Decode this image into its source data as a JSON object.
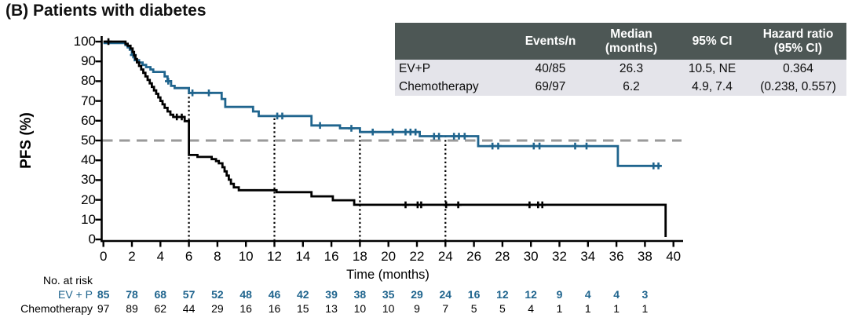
{
  "title": "(B) Patients with diabetes",
  "summary_table": {
    "headers": {
      "col0": {
        "line1": "",
        "line2": ""
      },
      "col1": {
        "line1": "Events/n",
        "line2": ""
      },
      "col2": {
        "line1": "Median",
        "line2": "(months)"
      },
      "col3": {
        "line1": "95% CI",
        "line2": ""
      },
      "col4": {
        "line1": "Hazard ratio",
        "line2": "(95% CI)"
      }
    },
    "rows": [
      {
        "name": "EV+P",
        "events_n": "40/85",
        "median_months": "26.3",
        "ci_95": "10.5, NE",
        "hazard_ratio": "0.364"
      },
      {
        "name": "Chemotherapy",
        "events_n": "69/97",
        "median_months": "6.2",
        "ci_95": "4.9, 7.4",
        "hazard_ratio": "(0.238, 0.557)"
      }
    ],
    "header_bg": "#4d5755",
    "body_bg": "#e4e4ea"
  },
  "chart_data": {
    "type": "line",
    "subtype": "kaplan_meier_step",
    "xlabel": "Time (months)",
    "ylabel": "PFS (%)",
    "xlim": [
      0,
      40
    ],
    "ylim": [
      0,
      100
    ],
    "x_ticks": [
      0,
      2,
      4,
      6,
      8,
      10,
      12,
      14,
      16,
      18,
      20,
      22,
      24,
      26,
      28,
      30,
      32,
      34,
      36,
      38,
      40
    ],
    "y_ticks": [
      0,
      10,
      20,
      30,
      40,
      50,
      60,
      70,
      80,
      90,
      100
    ],
    "grid": false,
    "reference_line_y": 50,
    "reference_line_color": "#9a9a9a",
    "landmark_lines": [
      [
        6,
        74.1
      ],
      [
        12,
        62.4
      ],
      [
        18,
        54.3
      ],
      [
        24,
        52.2
      ]
    ],
    "series": [
      {
        "name": "EV+P",
        "color": "#20658e",
        "steps": [
          [
            0,
            99.3
          ],
          [
            1.55,
            99.3
          ],
          [
            1.55,
            98.2
          ],
          [
            1.7,
            98.2
          ],
          [
            1.7,
            97.1
          ],
          [
            1.85,
            97.1
          ],
          [
            1.85,
            95.9
          ],
          [
            2.0,
            95.9
          ],
          [
            2.0,
            94.1
          ],
          [
            2.1,
            94.1
          ],
          [
            2.1,
            92.4
          ],
          [
            2.2,
            92.4
          ],
          [
            2.2,
            90.6
          ],
          [
            2.5,
            90.6
          ],
          [
            2.5,
            89.4
          ],
          [
            2.75,
            89.4
          ],
          [
            2.75,
            88.2
          ],
          [
            3.0,
            88.2
          ],
          [
            3.0,
            87.1
          ],
          [
            3.3,
            87.1
          ],
          [
            3.3,
            85.9
          ],
          [
            3.5,
            85.9
          ],
          [
            3.5,
            84.7
          ],
          [
            4.3,
            84.7
          ],
          [
            4.3,
            82.4
          ],
          [
            4.5,
            82.4
          ],
          [
            4.5,
            80.0
          ],
          [
            4.75,
            80.0
          ],
          [
            4.75,
            77.6
          ],
          [
            5.0,
            77.6
          ],
          [
            5.0,
            76.5
          ],
          [
            6.0,
            76.5
          ],
          [
            6.0,
            74.1
          ],
          [
            8.3,
            74.1
          ],
          [
            8.3,
            71.0
          ],
          [
            8.55,
            71.0
          ],
          [
            8.55,
            67.0
          ],
          [
            10.5,
            67.0
          ],
          [
            10.5,
            64.7
          ],
          [
            10.9,
            64.7
          ],
          [
            10.9,
            62.4
          ],
          [
            14.6,
            62.4
          ],
          [
            14.6,
            57.6
          ],
          [
            16.6,
            57.6
          ],
          [
            16.6,
            56.2
          ],
          [
            18.0,
            56.2
          ],
          [
            18.0,
            54.3
          ],
          [
            22.2,
            54.3
          ],
          [
            22.2,
            52.2
          ],
          [
            26.3,
            52.2
          ],
          [
            26.3,
            47.2
          ],
          [
            36.1,
            47.2
          ],
          [
            36.1,
            37.2
          ],
          [
            39.1,
            37.2
          ]
        ],
        "censors": [
          [
            2.1,
            93.2
          ],
          [
            4.55,
            80.0
          ],
          [
            6.25,
            74.1
          ],
          [
            7.4,
            74.1
          ],
          [
            12.2,
            62.4
          ],
          [
            12.55,
            62.4
          ],
          [
            15.2,
            57.6
          ],
          [
            17.4,
            56.2
          ],
          [
            18.9,
            54.3
          ],
          [
            20.3,
            54.3
          ],
          [
            21.2,
            54.3
          ],
          [
            21.55,
            54.3
          ],
          [
            21.9,
            54.3
          ],
          [
            23.2,
            52.2
          ],
          [
            23.55,
            52.2
          ],
          [
            24.6,
            52.2
          ],
          [
            24.95,
            52.2
          ],
          [
            25.35,
            52.2
          ],
          [
            27.3,
            47.2
          ],
          [
            27.7,
            47.2
          ],
          [
            30.2,
            47.2
          ],
          [
            30.6,
            47.2
          ],
          [
            33.1,
            47.2
          ],
          [
            33.9,
            47.2
          ],
          [
            38.6,
            37.2
          ],
          [
            38.95,
            37.2
          ]
        ]
      },
      {
        "name": "Chemotherapy",
        "color": "#000000",
        "steps": [
          [
            0,
            100
          ],
          [
            1.55,
            100
          ],
          [
            1.55,
            98.9
          ],
          [
            1.7,
            98.9
          ],
          [
            1.7,
            97.9
          ],
          [
            1.9,
            97.9
          ],
          [
            1.9,
            96.5
          ],
          [
            2.05,
            96.5
          ],
          [
            2.05,
            94.8
          ],
          [
            2.15,
            94.8
          ],
          [
            2.15,
            93.0
          ],
          [
            2.25,
            93.0
          ],
          [
            2.25,
            91.2
          ],
          [
            2.35,
            91.2
          ],
          [
            2.35,
            89.5
          ],
          [
            2.5,
            89.5
          ],
          [
            2.5,
            87.7
          ],
          [
            2.65,
            87.7
          ],
          [
            2.65,
            85.9
          ],
          [
            2.8,
            85.9
          ],
          [
            2.8,
            84.2
          ],
          [
            2.95,
            84.2
          ],
          [
            2.95,
            82.4
          ],
          [
            3.1,
            82.4
          ],
          [
            3.1,
            80.6
          ],
          [
            3.25,
            80.6
          ],
          [
            3.25,
            78.9
          ],
          [
            3.4,
            78.9
          ],
          [
            3.4,
            77.1
          ],
          [
            3.55,
            77.1
          ],
          [
            3.55,
            75.3
          ],
          [
            3.7,
            75.3
          ],
          [
            3.7,
            73.6
          ],
          [
            3.85,
            73.6
          ],
          [
            3.85,
            71.8
          ],
          [
            4.0,
            71.8
          ],
          [
            4.0,
            70.0
          ],
          [
            4.15,
            70.0
          ],
          [
            4.15,
            68.3
          ],
          [
            4.3,
            68.3
          ],
          [
            4.3,
            66.5
          ],
          [
            4.5,
            66.5
          ],
          [
            4.5,
            64.7
          ],
          [
            4.7,
            64.7
          ],
          [
            4.7,
            63.0
          ],
          [
            4.9,
            63.0
          ],
          [
            4.9,
            61.9
          ],
          [
            5.7,
            61.9
          ],
          [
            5.7,
            59.8
          ],
          [
            6.0,
            59.8
          ],
          [
            6.0,
            42.7
          ],
          [
            6.6,
            42.7
          ],
          [
            6.6,
            41.7
          ],
          [
            7.6,
            41.7
          ],
          [
            7.6,
            40.6
          ],
          [
            7.9,
            40.6
          ],
          [
            7.9,
            39.6
          ],
          [
            8.1,
            39.6
          ],
          [
            8.1,
            38.5
          ],
          [
            8.35,
            38.5
          ],
          [
            8.35,
            36.5
          ],
          [
            8.5,
            36.5
          ],
          [
            8.5,
            34.4
          ],
          [
            8.65,
            34.4
          ],
          [
            8.65,
            32.3
          ],
          [
            8.8,
            32.3
          ],
          [
            8.8,
            30.2
          ],
          [
            8.95,
            30.2
          ],
          [
            8.95,
            28.1
          ],
          [
            9.15,
            28.1
          ],
          [
            9.15,
            26.3
          ],
          [
            9.5,
            26.3
          ],
          [
            9.5,
            24.9
          ],
          [
            12.15,
            24.9
          ],
          [
            12.15,
            23.9
          ],
          [
            14.6,
            23.9
          ],
          [
            14.6,
            21.8
          ],
          [
            16.1,
            21.8
          ],
          [
            16.1,
            19.8
          ],
          [
            17.6,
            19.8
          ],
          [
            17.6,
            17.5
          ],
          [
            39.45,
            17.5
          ],
          [
            39.45,
            1.2
          ]
        ],
        "censors": [
          [
            0.35,
            100
          ],
          [
            5.15,
            61.9
          ],
          [
            5.5,
            61.9
          ],
          [
            21.2,
            17.5
          ],
          [
            22.05,
            17.5
          ],
          [
            22.3,
            17.5
          ],
          [
            24.05,
            17.5
          ],
          [
            24.9,
            17.5
          ],
          [
            29.9,
            17.5
          ],
          [
            30.5,
            17.5
          ],
          [
            30.8,
            17.5
          ]
        ]
      }
    ],
    "at_risk": {
      "label": "No. at risk",
      "times": [
        0,
        2,
        4,
        6,
        8,
        10,
        12,
        14,
        16,
        18,
        20,
        22,
        24,
        26,
        28,
        30,
        32,
        34,
        36,
        38
      ],
      "rows": [
        {
          "name": "EV + P",
          "color": "#20658e",
          "bold": true,
          "values": [
            85,
            78,
            68,
            57,
            52,
            48,
            46,
            42,
            39,
            38,
            35,
            29,
            24,
            16,
            12,
            12,
            9,
            4,
            4,
            3
          ]
        },
        {
          "name": "Chemotherapy",
          "color": "#000000",
          "bold": false,
          "values": [
            97,
            89,
            62,
            44,
            29,
            16,
            16,
            15,
            13,
            10,
            10,
            9,
            7,
            5,
            5,
            4,
            1,
            1,
            1,
            1
          ]
        }
      ]
    }
  }
}
